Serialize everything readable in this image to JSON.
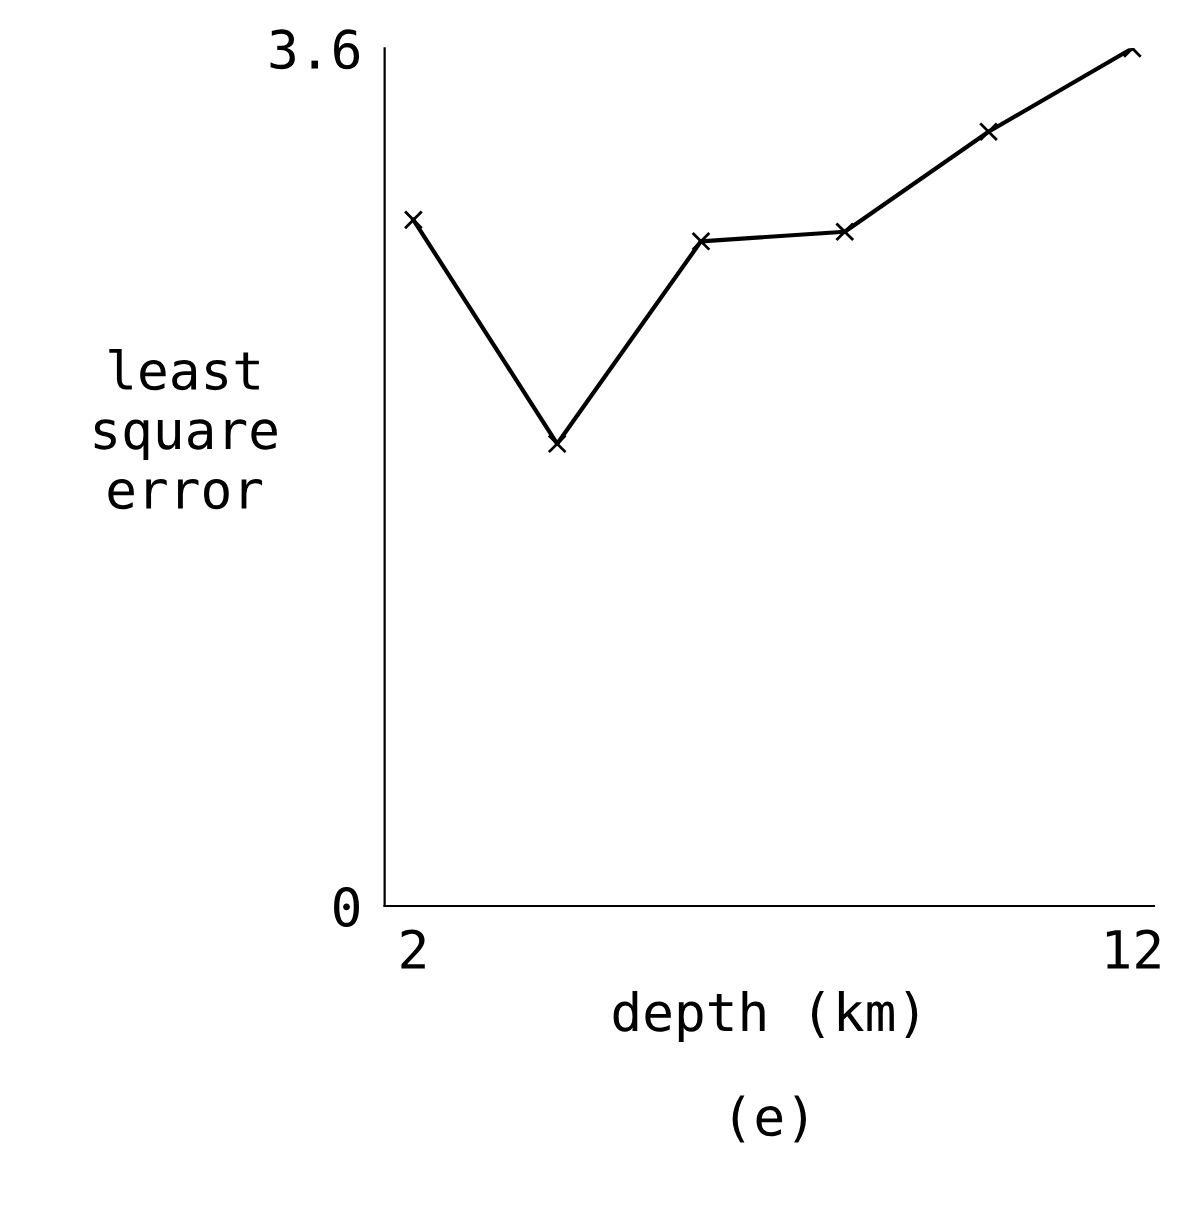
{
  "chart_data": {
    "type": "line",
    "xlabel": "depth (km)",
    "ylabel": "least\nsquare\nerror",
    "x": [
      2,
      4,
      6,
      8,
      10,
      12
    ],
    "series": [
      {
        "color": "#000000",
        "values": [
          2.88,
          1.94,
          2.79,
          2.83,
          3.25,
          3.6
        ]
      }
    ],
    "xlim": [
      1.6,
      12.3
    ],
    "ylim": [
      0,
      3.6
    ],
    "xticks": [
      2,
      12
    ],
    "yticks": [
      0,
      3.6
    ],
    "marker": "cross",
    "line_style": "solid",
    "grid": false,
    "legend": false,
    "annotations": [
      "(e)"
    ]
  }
}
